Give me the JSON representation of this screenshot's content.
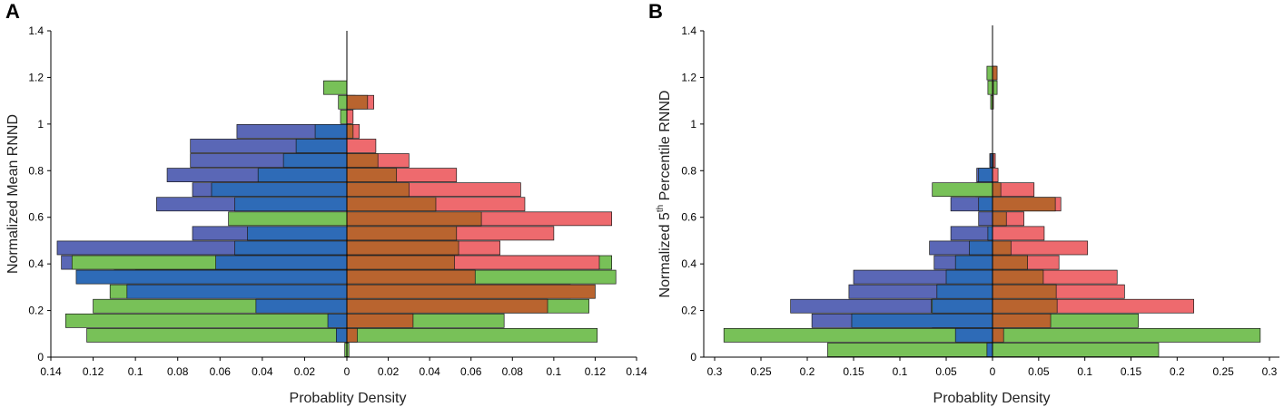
{
  "colors": {
    "blue_light": "#5a67b6",
    "blue": "#2e6bb7",
    "green": "#78c158",
    "red": "#ee6a6e",
    "orange": "#b9642f"
  },
  "chart_data": [
    {
      "panel": "A",
      "type": "bar",
      "orientation": "horizontal-mirrored",
      "ylabel": "Normalized Mean RNND",
      "xlabel": "Probablity Density",
      "ylim": [
        0,
        1.4
      ],
      "xlim_left": [
        0,
        0.14
      ],
      "xlim_right": [
        0,
        0.14
      ],
      "y_ticks": [
        "0",
        "0.2",
        "0.4",
        "0.6",
        "0.8",
        "1",
        "1.2",
        "1.4"
      ],
      "x_ticks_left": [
        "0.14",
        "0.12",
        "0.1",
        "0.08",
        "0.06",
        "0.04",
        "0.02"
      ],
      "x_center_tick": "0",
      "x_ticks_right": [
        "0.02",
        "0.04",
        "0.06",
        "0.08",
        "0.1",
        "0.12",
        "0.14"
      ],
      "bin_width": 0.0625,
      "bins": [
        0.0,
        0.0625,
        0.125,
        0.1875,
        0.25,
        0.3125,
        0.375,
        0.4375,
        0.5,
        0.5625,
        0.625,
        0.6875,
        0.75,
        0.8125,
        0.875,
        0.9375,
        1.0,
        1.0625,
        1.125,
        1.1875
      ],
      "series": [
        {
          "name": "left-outer",
          "side": "left",
          "color": "blue_light",
          "values": [
            0,
            0,
            0,
            0,
            0,
            0.11,
            0.135,
            0.137,
            0.073,
            0,
            0.09,
            0.073,
            0.085,
            0.074,
            0.074,
            0.052,
            0,
            0,
            0,
            0
          ]
        },
        {
          "name": "left-green",
          "side": "left",
          "color": "green",
          "values": [
            0.001,
            0.123,
            0.133,
            0.12,
            0.112,
            0.1,
            0.13,
            0,
            0,
            0.056,
            0,
            0,
            0,
            0,
            0,
            0,
            0.003,
            0.004,
            0.011,
            0
          ]
        },
        {
          "name": "left-blue",
          "side": "left",
          "color": "blue",
          "values": [
            0,
            0.005,
            0.009,
            0.043,
            0.104,
            0.128,
            0.062,
            0.053,
            0.047,
            0,
            0.053,
            0.064,
            0.042,
            0.03,
            0.024,
            0.015,
            0,
            0,
            0,
            0
          ]
        },
        {
          "name": "right-green",
          "side": "right",
          "color": "green",
          "values": [
            0.001,
            0.121,
            0.076,
            0.117,
            0.108,
            0.13,
            0.128,
            0,
            0,
            0,
            0,
            0,
            0,
            0,
            0,
            0,
            0.002,
            0.004,
            0,
            0
          ]
        },
        {
          "name": "right-red",
          "side": "right",
          "color": "red",
          "values": [
            0,
            0,
            0,
            0,
            0,
            0,
            0.122,
            0.074,
            0.1,
            0.128,
            0.086,
            0.084,
            0.053,
            0.03,
            0.014,
            0.006,
            0.003,
            0.013,
            0,
            0
          ]
        },
        {
          "name": "right-orange",
          "side": "right",
          "color": "orange",
          "values": [
            0,
            0.005,
            0.032,
            0.097,
            0.12,
            0.062,
            0.052,
            0.054,
            0.053,
            0.065,
            0.043,
            0.03,
            0.024,
            0.015,
            0,
            0.003,
            0,
            0.01,
            0,
            0
          ]
        }
      ]
    },
    {
      "panel": "B",
      "type": "bar",
      "orientation": "horizontal-mirrored",
      "ylabel_main": "Normalized 5",
      "ylabel_sup": "th",
      "ylabel_rest": " Percentile RNND",
      "xlabel": "Probablity Density",
      "ylim": [
        0,
        1.4
      ],
      "xlim_left": [
        0,
        0.3
      ],
      "xlim_right": [
        0,
        0.3
      ],
      "y_ticks": [
        "0",
        "0.2",
        "0.4",
        "0.6",
        "0.8",
        "1",
        "1.2",
        "1.4"
      ],
      "x_ticks_left": [
        "0.3",
        "0.25",
        "0.2",
        "0.15",
        "0.1",
        "0.05"
      ],
      "x_center_tick": "0",
      "x_ticks_right": [
        "0.05",
        "0.1",
        "0.15",
        "0.2",
        "0.25",
        "0.3"
      ],
      "bin_width": 0.0625,
      "bins": [
        0.0,
        0.0625,
        0.125,
        0.1875,
        0.25,
        0.3125,
        0.375,
        0.4375,
        0.5,
        0.5625,
        0.625,
        0.6875,
        0.75,
        0.8125,
        0.875,
        0.9375,
        1.0,
        1.0625,
        1.125,
        1.1875
      ],
      "series": [
        {
          "name": "left-outer",
          "side": "left",
          "color": "blue_light",
          "values": [
            0,
            0,
            0.195,
            0.218,
            0.155,
            0.15,
            0.063,
            0.068,
            0.045,
            0.015,
            0.045,
            0.018,
            0.017,
            0.003,
            0,
            0,
            0,
            0,
            0,
            0
          ]
        },
        {
          "name": "left-green",
          "side": "left",
          "color": "green",
          "values": [
            0.178,
            0.29,
            0.065,
            0.066,
            0,
            0,
            0,
            0,
            0,
            0,
            0,
            0.065,
            0,
            0,
            0,
            0,
            0,
            0.002,
            0.005,
            0.006
          ]
        },
        {
          "name": "left-blue",
          "side": "left",
          "color": "blue",
          "values": [
            0.006,
            0.04,
            0.152,
            0.065,
            0.06,
            0.05,
            0.04,
            0.025,
            0.005,
            0,
            0.015,
            0,
            0.015,
            0.002,
            0,
            0,
            0,
            0,
            0,
            0
          ]
        },
        {
          "name": "right-green",
          "side": "right",
          "color": "green",
          "values": [
            0.18,
            0.29,
            0.158,
            0,
            0,
            0,
            0,
            0,
            0,
            0,
            0,
            0,
            0,
            0,
            0,
            0,
            0,
            0,
            0.005,
            0.004
          ]
        },
        {
          "name": "right-red",
          "side": "right",
          "color": "red",
          "values": [
            0,
            0,
            0,
            0.218,
            0.143,
            0.135,
            0.072,
            0.103,
            0.056,
            0.034,
            0.074,
            0.045,
            0.006,
            0.003,
            0,
            0,
            0,
            0.001,
            0.001,
            0
          ]
        },
        {
          "name": "right-orange",
          "side": "right",
          "color": "orange",
          "values": [
            0,
            0.012,
            0.063,
            0.07,
            0.069,
            0.055,
            0.038,
            0.02,
            0,
            0.015,
            0.068,
            0.009,
            0,
            0.001,
            0,
            0,
            0,
            0,
            0,
            0.005
          ]
        }
      ]
    }
  ]
}
